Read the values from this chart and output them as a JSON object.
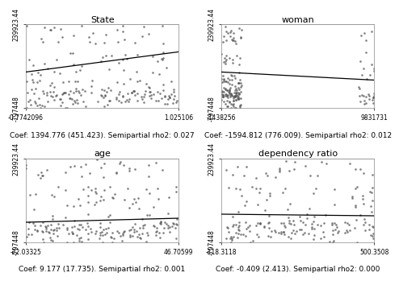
{
  "plots": [
    {
      "title": "State",
      "coef_text": "Coef: 1394.776 (451.423). Semipartial rho2: 0.027",
      "xlim": [
        -0.7742096,
        1.025106
      ],
      "ylim": [
        -797448,
        239923.44
      ],
      "xlabels": [
        "-0.7742096",
        "1.025106"
      ],
      "ylabels": [
        "-797448",
        "239923.44"
      ],
      "line_y": [
        -350000,
        -100000
      ],
      "n_points": 220,
      "seed": 42,
      "cluster_bottom": true,
      "x_cluster": false
    },
    {
      "title": "woman",
      "coef_text": "Coef: -1594.812 (776.009). Semipartial rho2: 0.012",
      "xlim": [
        -1438256,
        9831731
      ],
      "ylim": [
        -797448,
        239923.44
      ],
      "xlabels": [
        "-1438256",
        "9831731"
      ],
      "ylabels": [
        "-797448",
        "239923.44"
      ],
      "line_y": [
        -350000,
        -450000
      ],
      "n_points": 180,
      "seed": 43,
      "cluster_bottom": true,
      "x_cluster": true
    },
    {
      "title": "age",
      "coef_text": "Coef: 9.177 (17.735). Semipartial rho2: 0.001",
      "xlim": [
        -22.03325,
        46.70599
      ],
      "ylim": [
        -797448,
        239923.44
      ],
      "xlabels": [
        "-22.03325",
        "46.70599"
      ],
      "ylabels": [
        "-797448",
        "239923.44"
      ],
      "line_y": [
        -550000,
        -500000
      ],
      "n_points": 230,
      "seed": 44,
      "cluster_bottom": true,
      "x_cluster": false
    },
    {
      "title": "dependency ratio",
      "coef_text": "Coef: -0.409 (2.413). Semipartial rho2: 0.000",
      "xlim": [
        -118.3118,
        500.3508
      ],
      "ylim": [
        -797448,
        239923.44
      ],
      "xlabels": [
        "-118.3118",
        "500.3508"
      ],
      "ylabels": [
        "-797448",
        "239923.44"
      ],
      "line_y": [
        -450000,
        -470000
      ],
      "n_points": 200,
      "seed": 45,
      "cluster_bottom": true,
      "x_cluster": false
    }
  ],
  "dot_color": "#555555",
  "line_color": "#000000",
  "bg_color": "#ffffff",
  "text_color": "#000000",
  "title_fontsize": 8,
  "tick_fontsize": 5.5,
  "coef_fontsize": 6.5
}
